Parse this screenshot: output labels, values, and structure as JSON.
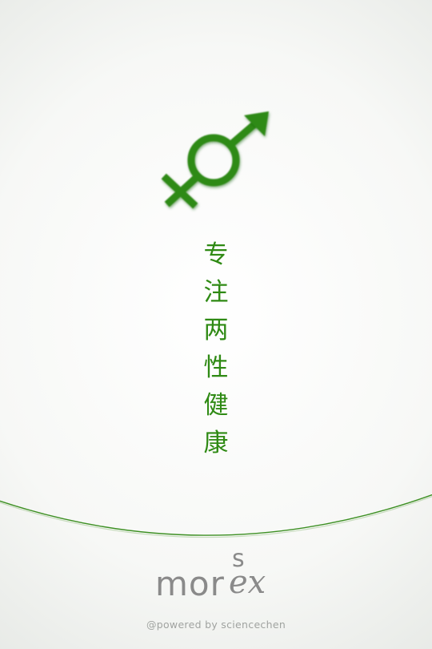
{
  "slogan": {
    "chars": [
      "专",
      "注",
      "两",
      "性",
      "健",
      "康"
    ]
  },
  "logo": {
    "main": "mor",
    "superscript": "s",
    "italic": "ex"
  },
  "footer": {
    "credit": "@powered by sciencechen"
  },
  "icons": {
    "symbol": "gender-symbol-icon"
  },
  "colors": {
    "accent_green": "#2f8a14",
    "logo_gray": "#8a8a8a",
    "footer_gray": "#a0a3a0"
  }
}
